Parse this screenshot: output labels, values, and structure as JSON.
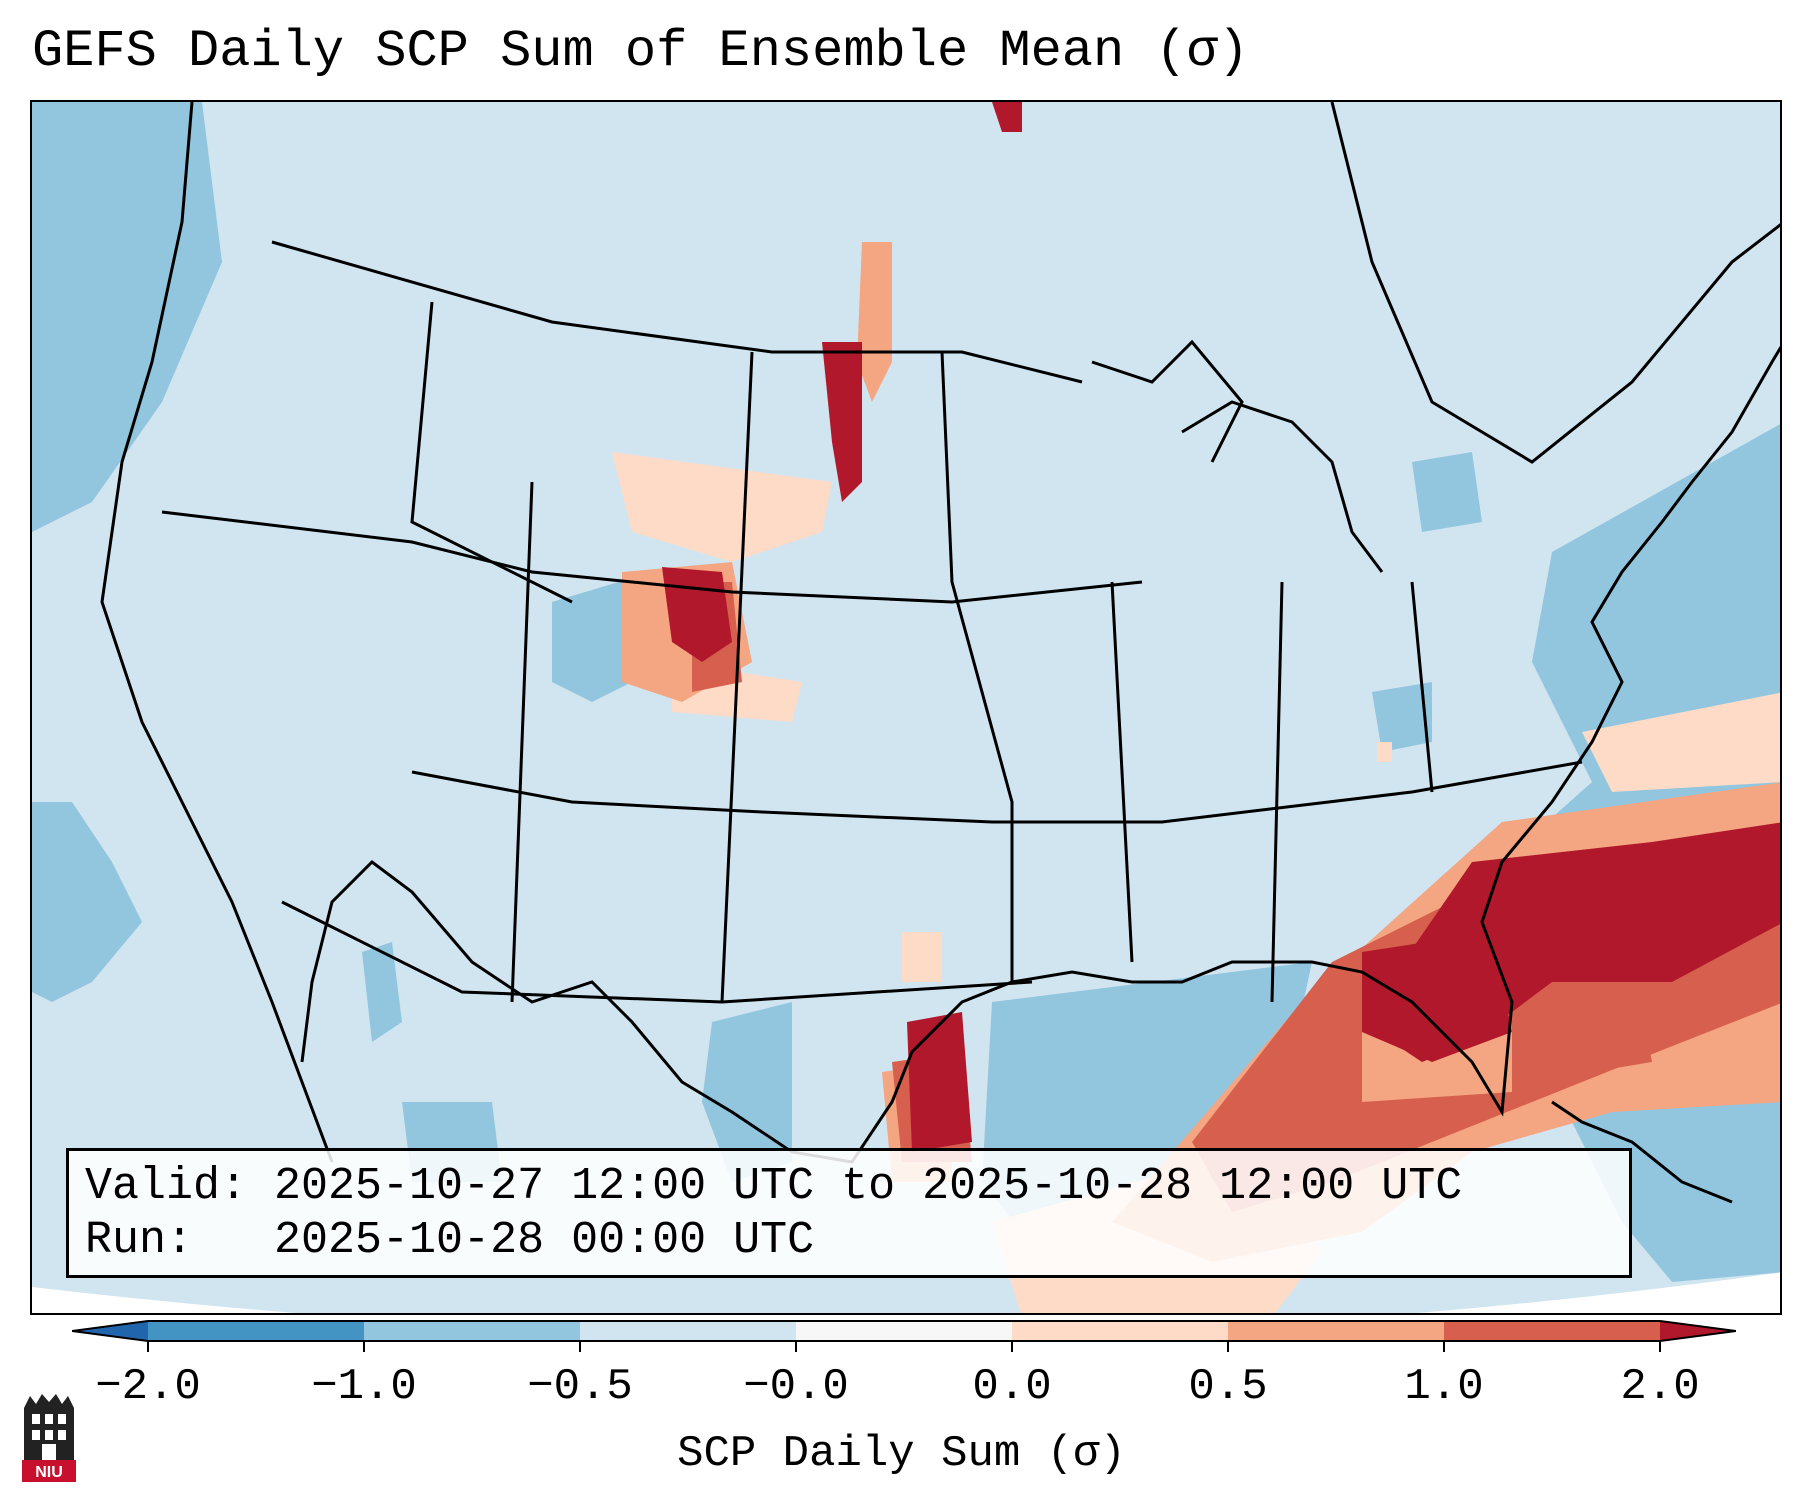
{
  "title": "GEFS Daily SCP Sum of Ensemble Mean (σ)",
  "info": {
    "valid_line": "Valid: 2025-10-27 12:00 UTC to 2025-10-28 12:00 UTC",
    "run_line": "Run:   2025-10-28 00:00 UTC"
  },
  "colorbar": {
    "label": "SCP Daily Sum (σ)",
    "ticks": [
      "−2.0",
      "−1.0",
      "−0.5",
      "−0.0",
      "0.0",
      "0.5",
      "1.0",
      "2.0"
    ],
    "colors": [
      "#4393c3",
      "#92c5de",
      "#d1e5f0",
      "#f7f7f7",
      "#fddbc7",
      "#f4a582",
      "#d6604d",
      "#b2182b"
    ],
    "extend_low_color": "#2166ac",
    "extend_high_color": "#b2182b"
  },
  "map_fields": {
    "background": "#d1e5f0",
    "ocean": "#92c5de",
    "light_positive": "#fddbc7",
    "moderate_positive": "#f4a582",
    "high_positive": "#d6604d",
    "max_positive": "#b2182b",
    "outline": "#000000"
  },
  "logo": {
    "text": "NIU",
    "color": "#c8102e"
  }
}
